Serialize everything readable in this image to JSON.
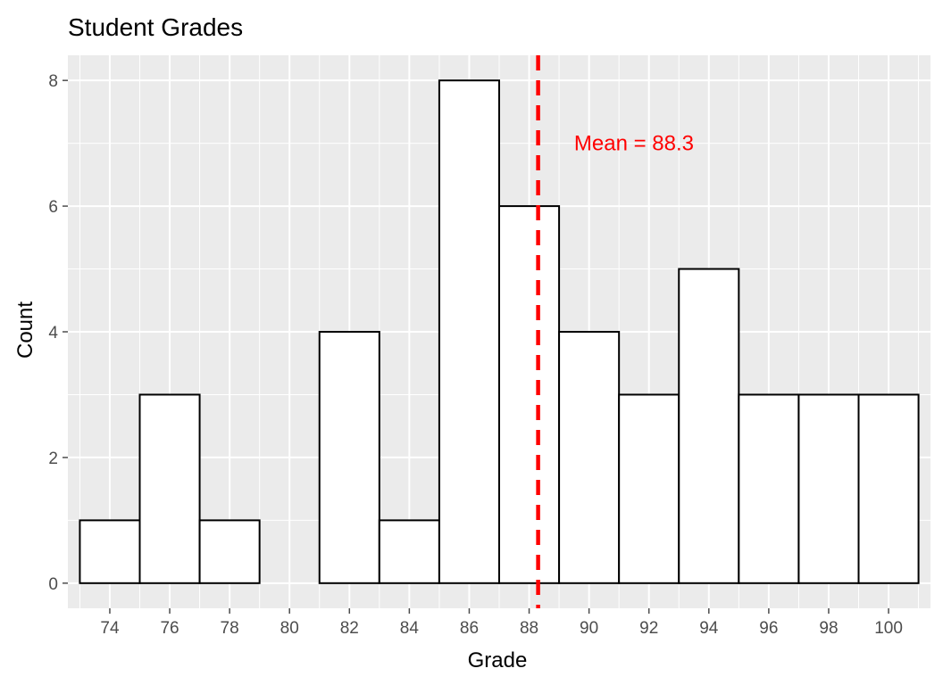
{
  "chart_data": {
    "type": "bar",
    "title": "Student Grades",
    "xlabel": "Grade",
    "ylabel": "Count",
    "bins": [
      {
        "start": 73,
        "end": 75,
        "count": 1
      },
      {
        "start": 75,
        "end": 77,
        "count": 3
      },
      {
        "start": 77,
        "end": 79,
        "count": 1
      },
      {
        "start": 79,
        "end": 81,
        "count": 0
      },
      {
        "start": 81,
        "end": 83,
        "count": 4
      },
      {
        "start": 83,
        "end": 85,
        "count": 1
      },
      {
        "start": 85,
        "end": 87,
        "count": 8
      },
      {
        "start": 87,
        "end": 89,
        "count": 6
      },
      {
        "start": 89,
        "end": 91,
        "count": 4
      },
      {
        "start": 91,
        "end": 93,
        "count": 3
      },
      {
        "start": 93,
        "end": 95,
        "count": 5
      },
      {
        "start": 95,
        "end": 97,
        "count": 3
      },
      {
        "start": 97,
        "end": 99,
        "count": 3
      },
      {
        "start": 99,
        "end": 101,
        "count": 3
      }
    ],
    "xlim": [
      72.6,
      101.4
    ],
    "ylim": [
      -0.4,
      8.4
    ],
    "xticks": [
      74,
      76,
      78,
      80,
      82,
      84,
      86,
      88,
      90,
      92,
      94,
      96,
      98,
      100
    ],
    "yticks": [
      0,
      2,
      4,
      6,
      8
    ],
    "mean": 88.3,
    "mean_label": "Mean = 88.3",
    "mean_label_x": 91.5,
    "mean_label_y": 7,
    "colors": {
      "panel": "#ebebeb",
      "grid": "#ffffff",
      "bar_fill": "#ffffff",
      "bar_stroke": "#000000",
      "mean_line": "#ff0000",
      "tick": "#4d4d4d"
    },
    "grid": true,
    "legend": "none"
  }
}
